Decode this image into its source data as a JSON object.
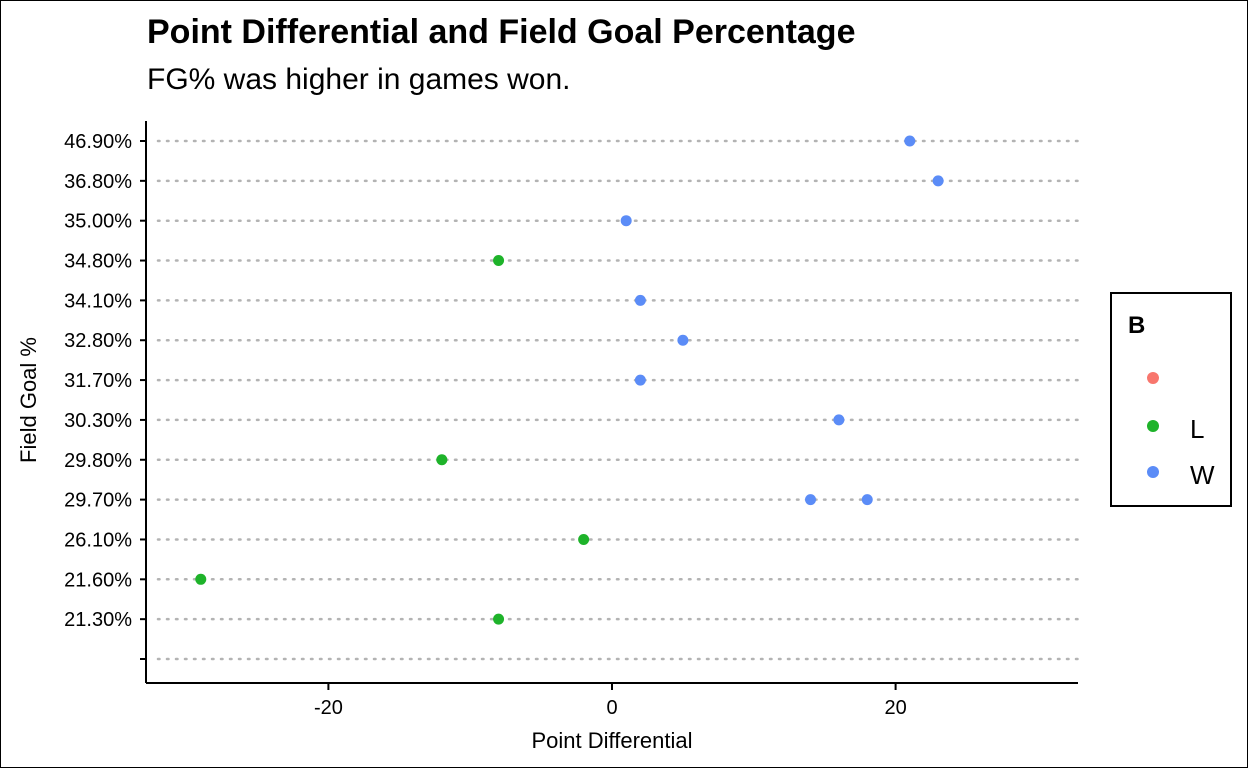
{
  "chart_data": {
    "type": "scatter",
    "title": "Point Differential and Field Goal Percentage",
    "subtitle": "FG% was higher in games won.",
    "xlabel": "Point Differential",
    "ylabel": "Field Goal %",
    "xlim": [
      -33,
      33
    ],
    "xticks": [
      -20,
      0,
      20
    ],
    "y_categories": [
      "",
      "21.30%",
      "21.60%",
      "26.10%",
      "29.70%",
      "29.80%",
      "30.30%",
      "31.70%",
      "32.80%",
      "34.10%",
      "34.80%",
      "35.00%",
      "36.80%",
      "46.90%"
    ],
    "grid": "horizontal dotted",
    "legend": {
      "title": "B",
      "placement": "right",
      "entries": [
        {
          "label": "",
          "color": "#F8766D"
        },
        {
          "label": "L",
          "color": "#1EB32A"
        },
        {
          "label": "W",
          "color": "#5B8CF7"
        }
      ]
    },
    "series": [
      {
        "name": "L",
        "color": "#1EB32A",
        "points": [
          {
            "x": -8,
            "y": "34.80%"
          },
          {
            "x": -12,
            "y": "29.80%"
          },
          {
            "x": -2,
            "y": "26.10%"
          },
          {
            "x": -29,
            "y": "21.60%"
          },
          {
            "x": -8,
            "y": "21.30%"
          }
        ]
      },
      {
        "name": "W",
        "color": "#5B8CF7",
        "points": [
          {
            "x": 21,
            "y": "46.90%"
          },
          {
            "x": 23,
            "y": "36.80%"
          },
          {
            "x": 1,
            "y": "35.00%"
          },
          {
            "x": 2,
            "y": "34.10%"
          },
          {
            "x": 5,
            "y": "32.80%"
          },
          {
            "x": 2,
            "y": "31.70%"
          },
          {
            "x": 16,
            "y": "30.30%"
          },
          {
            "x": 14,
            "y": "29.70%"
          },
          {
            "x": 18,
            "y": "29.70%"
          }
        ]
      }
    ]
  }
}
